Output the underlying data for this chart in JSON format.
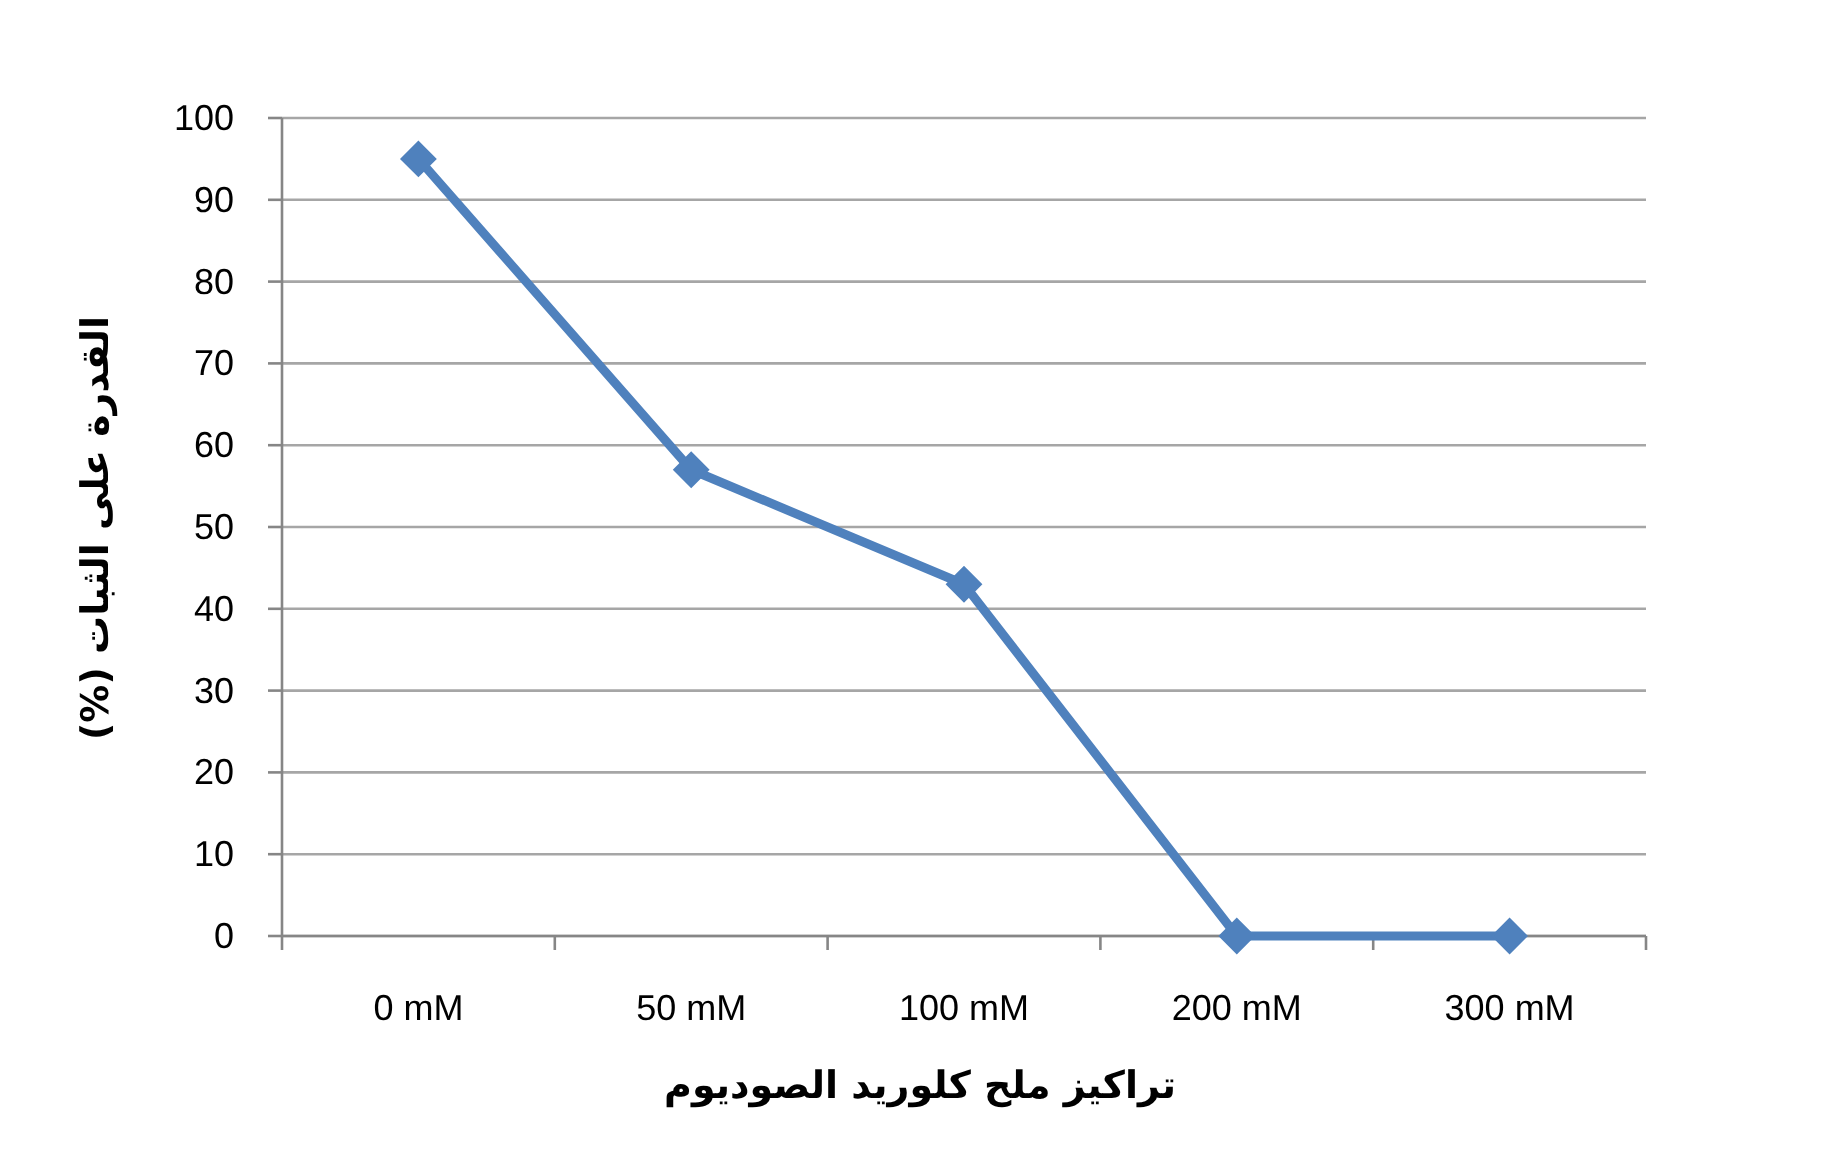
{
  "chart_data": {
    "type": "line",
    "xlabel": "تراكيز ملح كلوريد الصوديوم",
    "ylabel": "القدرة على الثبات (%)",
    "categories": [
      "0 mM",
      "50 mM",
      "100 mM",
      "200 mM",
      "300 mM"
    ],
    "series": [
      {
        "color": "#4f81bd",
        "values": [
          95,
          57,
          43,
          0,
          0
        ]
      }
    ],
    "ylim": [
      0,
      100
    ],
    "yticks": [
      0,
      10,
      20,
      30,
      40,
      50,
      60,
      70,
      80,
      90,
      100
    ],
    "grid": "y",
    "marker": "diamond",
    "line_style": "solid"
  }
}
